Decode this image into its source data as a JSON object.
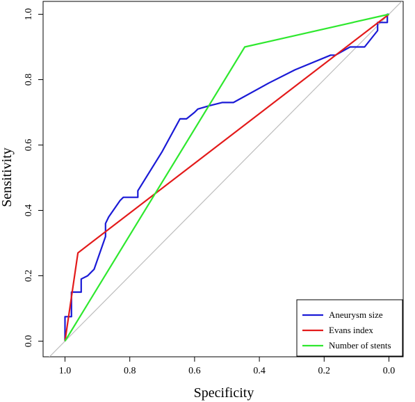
{
  "chart_data": {
    "type": "line",
    "xlabel": "Specificity",
    "ylabel": "Sensitivity",
    "xlim": [
      1.05,
      0.0
    ],
    "ylim": [
      0.0,
      1.0
    ],
    "x_reversed": true,
    "x_ticks": [
      1.0,
      0.8,
      0.6,
      0.4,
      0.2,
      0.0
    ],
    "x_tick_labels": [
      "1.0",
      "0.8",
      "0.6",
      "0.4",
      "0.2",
      "0.0"
    ],
    "y_ticks": [
      0.0,
      0.2,
      0.4,
      0.6,
      0.8,
      1.0
    ],
    "y_tick_labels": [
      "0.0",
      "0.2",
      "0.4",
      "0.6",
      "0.8",
      "1.0"
    ],
    "grid": false,
    "legend_position": "bottom-right",
    "reference_line": {
      "from": [
        1.0,
        0.0
      ],
      "to": [
        0.0,
        1.0
      ],
      "color": "#bdbdbd"
    },
    "series": [
      {
        "name": "Aneurysm size",
        "color": "#1a1ad6",
        "points": [
          [
            1.0,
            0.0
          ],
          [
            1.0,
            0.075
          ],
          [
            0.98,
            0.075
          ],
          [
            0.98,
            0.15
          ],
          [
            0.95,
            0.15
          ],
          [
            0.95,
            0.19
          ],
          [
            0.93,
            0.2
          ],
          [
            0.91,
            0.22
          ],
          [
            0.875,
            0.32
          ],
          [
            0.875,
            0.36
          ],
          [
            0.865,
            0.38
          ],
          [
            0.83,
            0.43
          ],
          [
            0.82,
            0.44
          ],
          [
            0.775,
            0.44
          ],
          [
            0.775,
            0.46
          ],
          [
            0.7,
            0.58
          ],
          [
            0.645,
            0.68
          ],
          [
            0.625,
            0.68
          ],
          [
            0.6,
            0.7
          ],
          [
            0.59,
            0.71
          ],
          [
            0.555,
            0.72
          ],
          [
            0.515,
            0.73
          ],
          [
            0.48,
            0.73
          ],
          [
            0.37,
            0.79
          ],
          [
            0.29,
            0.83
          ],
          [
            0.18,
            0.875
          ],
          [
            0.165,
            0.875
          ],
          [
            0.12,
            0.9
          ],
          [
            0.075,
            0.9
          ],
          [
            0.035,
            0.95
          ],
          [
            0.035,
            0.975
          ],
          [
            0.005,
            0.975
          ],
          [
            0.005,
            1.0
          ],
          [
            0.0,
            1.0
          ]
        ]
      },
      {
        "name": "Evans index",
        "color": "#e31a1a",
        "points": [
          [
            1.0,
            0.0
          ],
          [
            0.96,
            0.27
          ],
          [
            0.0,
            1.0
          ]
        ]
      },
      {
        "name": "Number of stents",
        "color": "#2ee82e",
        "points": [
          [
            1.0,
            0.0
          ],
          [
            0.445,
            0.9
          ],
          [
            0.0,
            1.0
          ]
        ]
      }
    ]
  }
}
